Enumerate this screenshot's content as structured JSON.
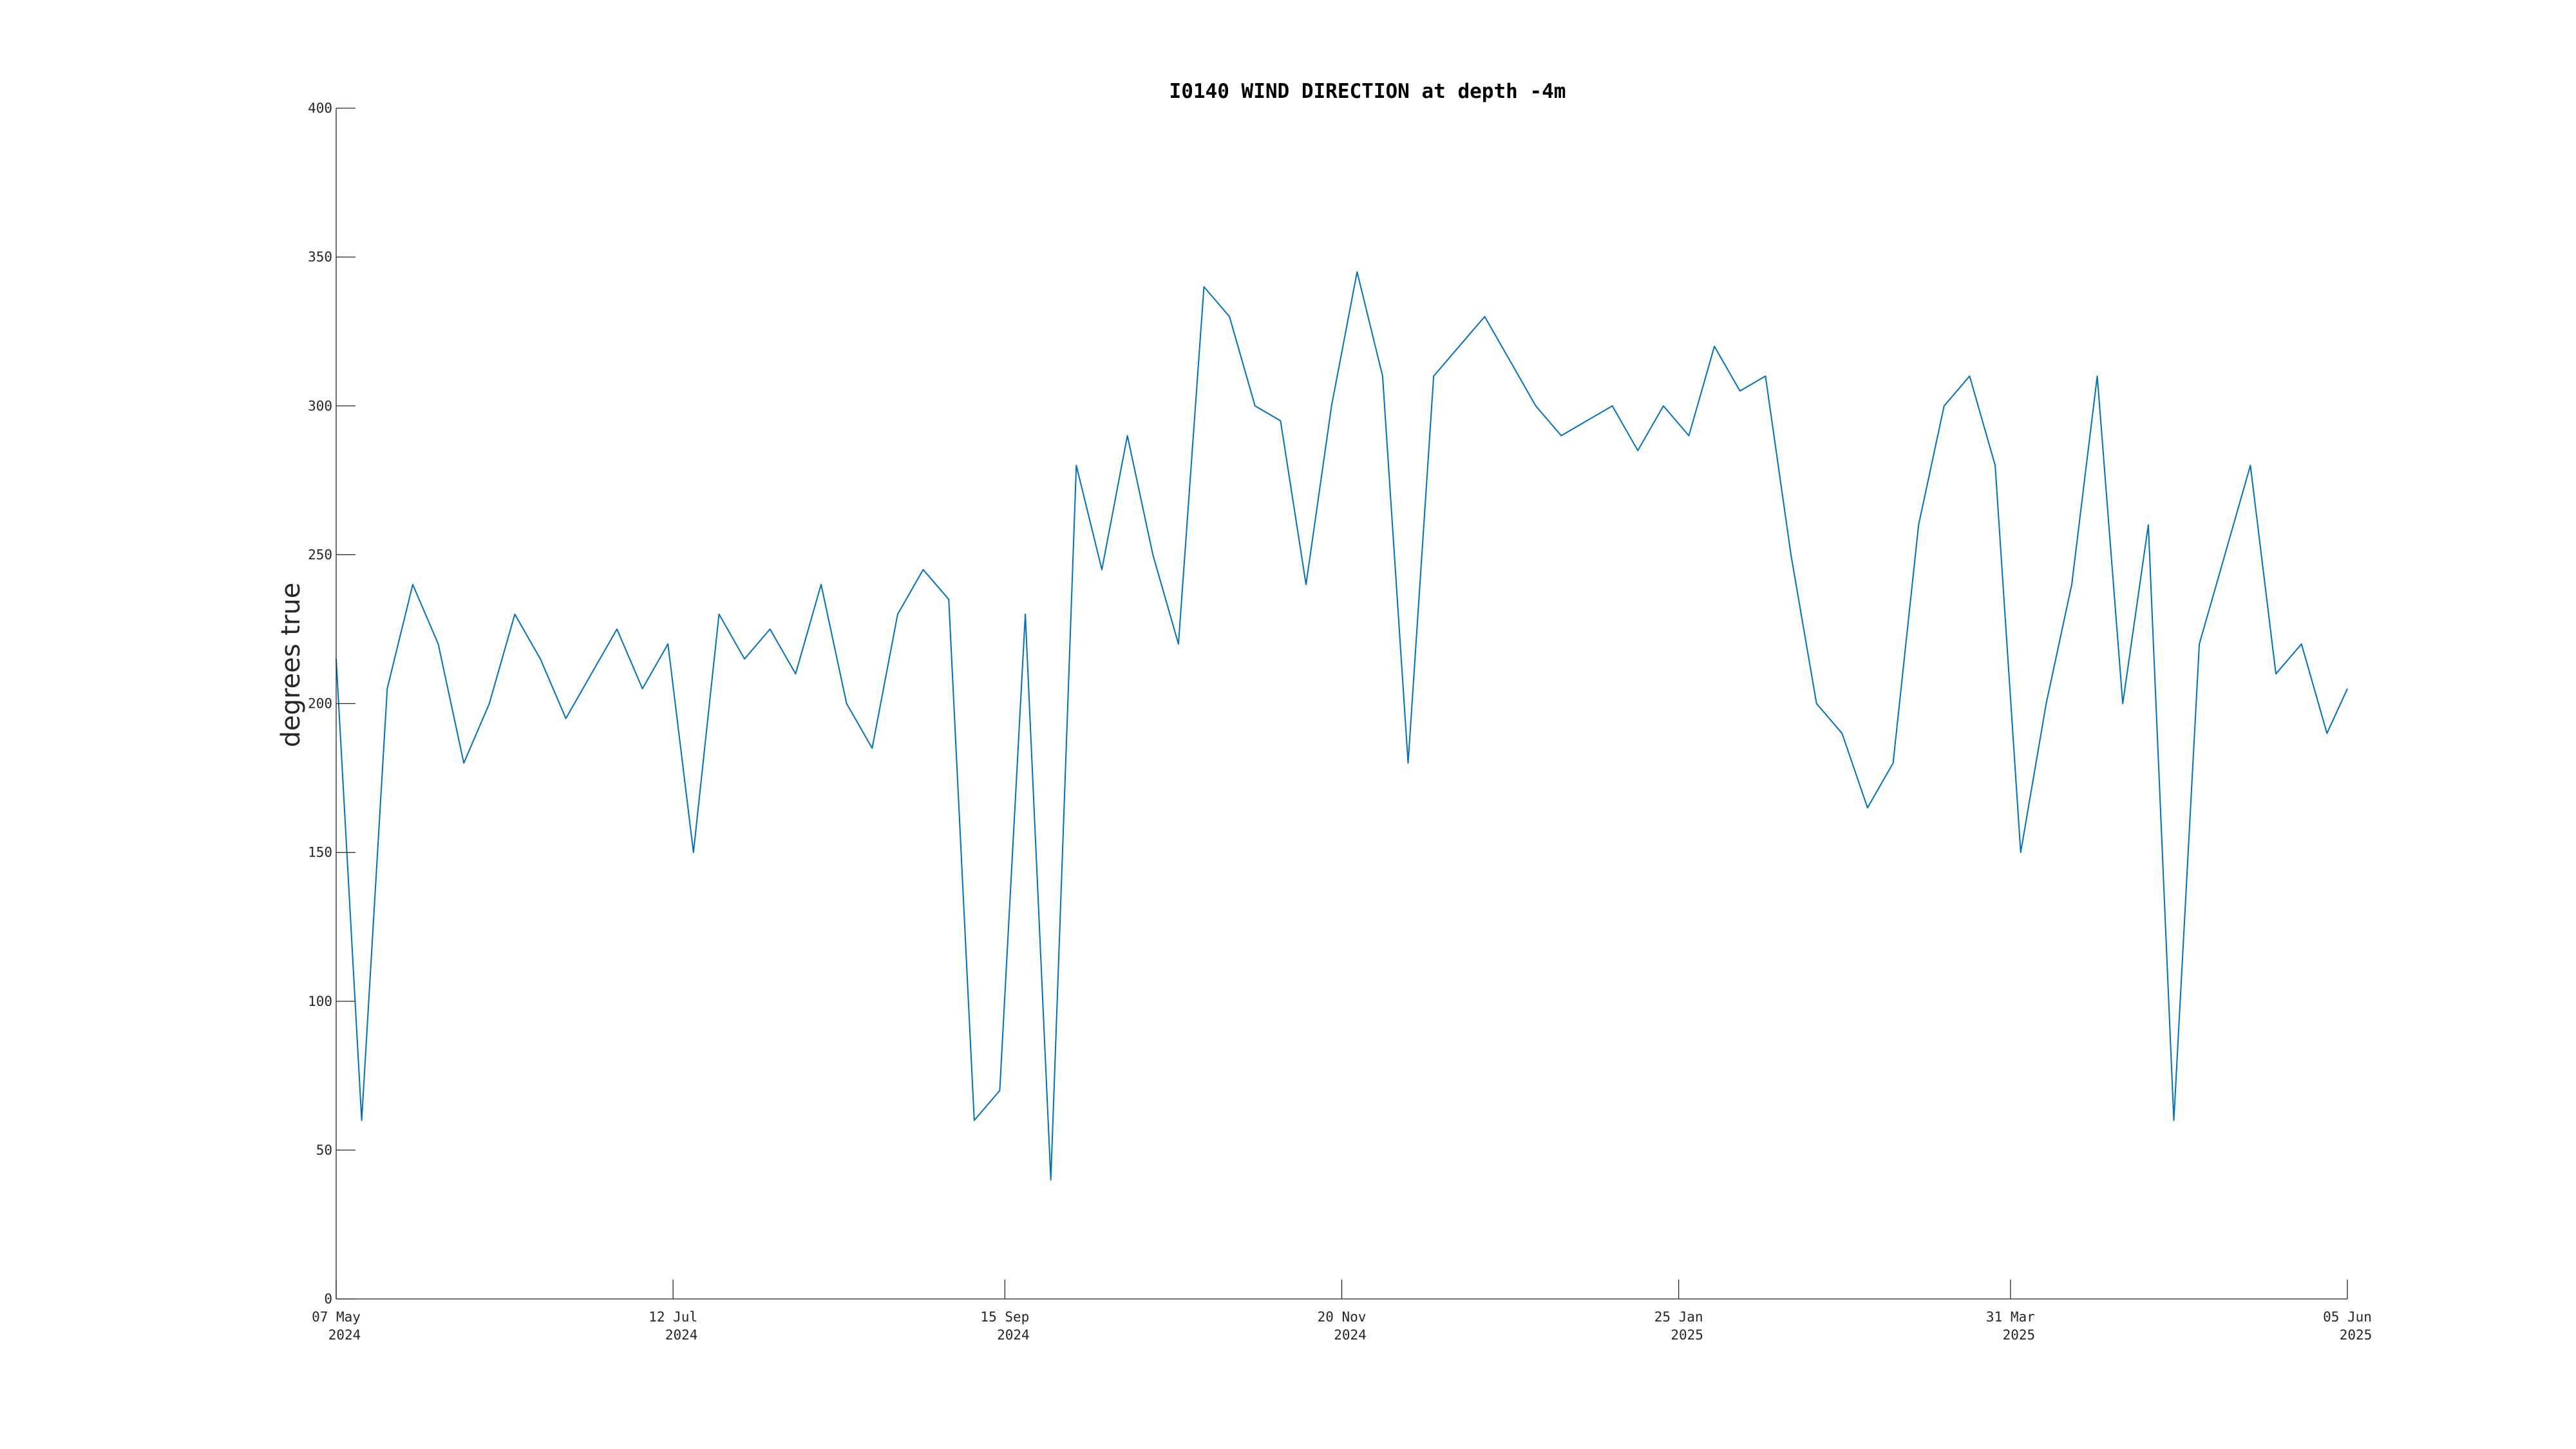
{
  "chart_data": {
    "type": "line",
    "title": "I0140 WIND DIRECTION at depth -4m",
    "xlabel": "",
    "ylabel": "degrees true",
    "xlim": [
      "2024-05-07",
      "2025-06-05"
    ],
    "ylim": [
      0,
      400
    ],
    "grid": false,
    "legend": "none",
    "y_ticks": [
      0,
      50,
      100,
      150,
      200,
      250,
      300,
      350,
      400
    ],
    "x_ticks": [
      {
        "date": "2024-05-07",
        "line1": "07 May",
        "line2": "2024"
      },
      {
        "date": "2024-07-12",
        "line1": "12 Jul",
        "line2": "2024"
      },
      {
        "date": "2024-09-15",
        "line1": "15 Sep",
        "line2": "2024"
      },
      {
        "date": "2024-11-20",
        "line1": "20 Nov",
        "line2": "2024"
      },
      {
        "date": "2025-01-25",
        "line1": "25 Jan",
        "line2": "2025"
      },
      {
        "date": "2025-03-31",
        "line1": "31 Mar",
        "line2": "2025"
      },
      {
        "date": "2025-06-05",
        "line1": "05 Jun",
        "line2": "2025"
      }
    ],
    "series": [
      {
        "color": "#0072BD",
        "x": [
          "2024-05-07",
          "2024-05-12",
          "2024-05-17",
          "2024-05-22",
          "2024-05-27",
          "2024-06-01",
          "2024-06-06",
          "2024-06-11",
          "2024-06-16",
          "2024-06-21",
          "2024-06-26",
          "2024-07-01",
          "2024-07-06",
          "2024-07-11",
          "2024-07-16",
          "2024-07-21",
          "2024-07-26",
          "2024-07-31",
          "2024-08-05",
          "2024-08-10",
          "2024-08-15",
          "2024-08-20",
          "2024-08-25",
          "2024-08-30",
          "2024-09-04",
          "2024-09-09",
          "2024-09-14",
          "2024-09-19",
          "2024-09-24",
          "2024-09-29",
          "2024-10-04",
          "2024-10-09",
          "2024-10-14",
          "2024-10-19",
          "2024-10-24",
          "2024-10-29",
          "2024-11-03",
          "2024-11-08",
          "2024-11-13",
          "2024-11-18",
          "2024-11-23",
          "2024-11-28",
          "2024-12-03",
          "2024-12-08",
          "2024-12-13",
          "2024-12-18",
          "2024-12-23",
          "2024-12-28",
          "2025-01-02",
          "2025-01-07",
          "2025-01-12",
          "2025-01-17",
          "2025-01-22",
          "2025-01-27",
          "2025-02-01",
          "2025-02-06",
          "2025-02-11",
          "2025-02-16",
          "2025-02-21",
          "2025-02-26",
          "2025-03-03",
          "2025-03-08",
          "2025-03-13",
          "2025-03-18",
          "2025-03-23",
          "2025-03-28",
          "2025-04-02",
          "2025-04-07",
          "2025-04-12",
          "2025-04-17",
          "2025-04-22",
          "2025-04-27",
          "2025-05-02",
          "2025-05-07",
          "2025-05-12",
          "2025-05-17",
          "2025-05-22",
          "2025-05-27",
          "2025-06-01",
          "2025-06-05"
        ],
        "y": [
          215,
          60,
          205,
          240,
          220,
          180,
          200,
          230,
          215,
          195,
          210,
          225,
          205,
          220,
          150,
          230,
          215,
          225,
          210,
          240,
          200,
          185,
          230,
          245,
          235,
          60,
          70,
          230,
          40,
          280,
          245,
          290,
          250,
          220,
          340,
          330,
          300,
          295,
          240,
          300,
          345,
          310,
          180,
          310,
          320,
          330,
          315,
          300,
          290,
          295,
          300,
          285,
          300,
          290,
          320,
          305,
          310,
          250,
          200,
          190,
          165,
          180,
          260,
          300,
          310,
          280,
          150,
          200,
          240,
          310,
          200,
          260,
          60,
          220,
          250,
          280,
          210,
          220,
          190,
          205
        ]
      }
    ]
  }
}
